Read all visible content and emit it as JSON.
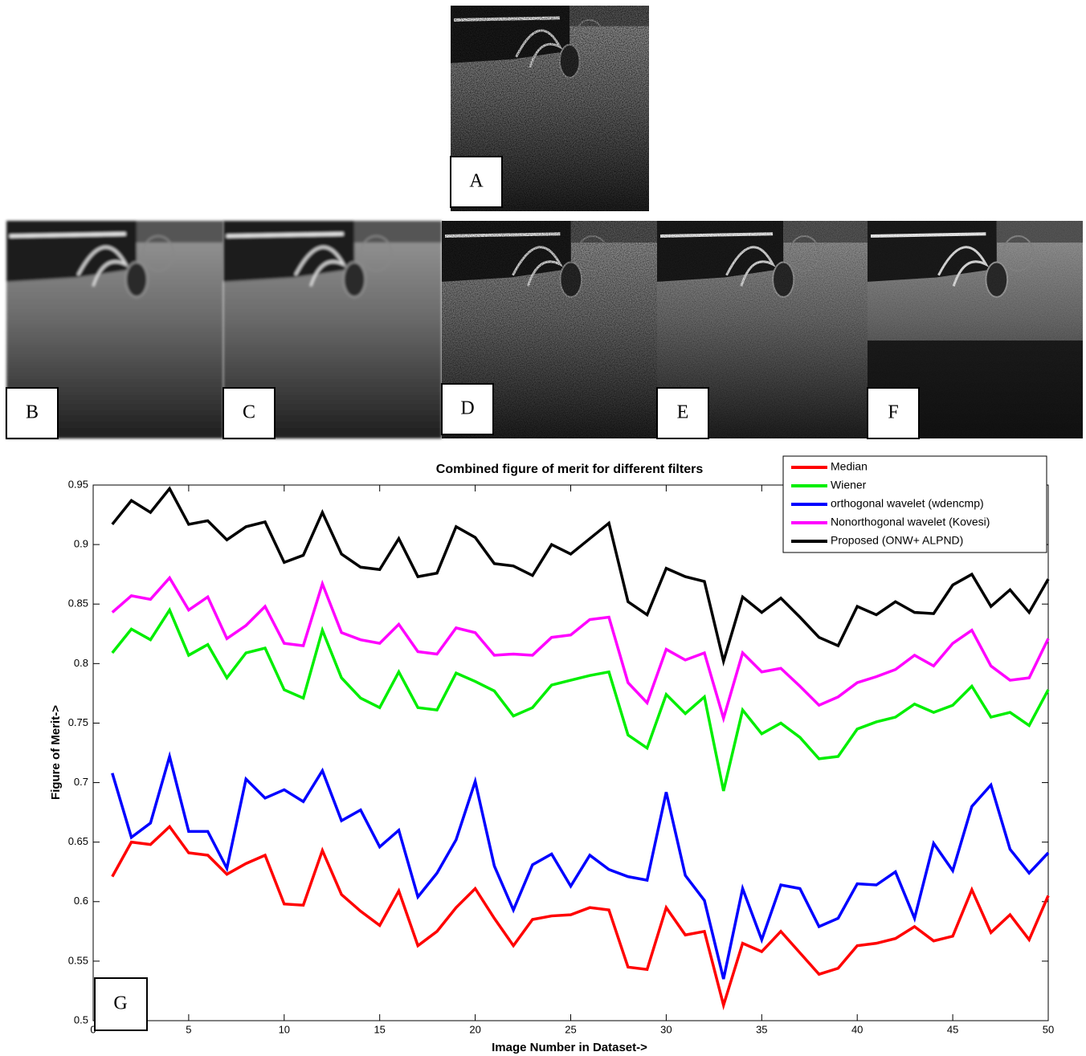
{
  "panels": {
    "labels": [
      "A",
      "B",
      "C",
      "D",
      "E",
      "F"
    ]
  },
  "chart_data": {
    "type": "line",
    "title": "Combined figure of merit for different filters",
    "x_label": "Image Number in Dataset->",
    "y_label": "Figure of Merit->",
    "annotation": "G",
    "x": [
      1,
      2,
      3,
      4,
      5,
      6,
      7,
      8,
      9,
      10,
      11,
      12,
      13,
      14,
      15,
      16,
      17,
      18,
      19,
      20,
      21,
      22,
      23,
      24,
      25,
      26,
      27,
      28,
      29,
      30,
      31,
      32,
      33,
      34,
      35,
      36,
      37,
      38,
      39,
      40,
      41,
      42,
      43,
      44,
      45,
      46,
      47,
      48,
      49,
      50
    ],
    "xlim": [
      0,
      50
    ],
    "xticks": [
      0,
      5,
      10,
      15,
      20,
      25,
      30,
      35,
      40,
      45,
      50
    ],
    "ylim": [
      0.5,
      0.95
    ],
    "yticks": [
      0.5,
      0.55,
      0.6,
      0.65,
      0.7,
      0.75,
      0.8,
      0.85,
      0.9,
      0.95
    ],
    "legend": "top-right",
    "series": [
      {
        "name": "Median",
        "color": "#ff0000",
        "values": [
          0.621,
          0.65,
          0.648,
          0.663,
          0.641,
          0.639,
          0.623,
          0.632,
          0.639,
          0.598,
          0.597,
          0.643,
          0.606,
          0.592,
          0.58,
          0.609,
          0.563,
          0.575,
          0.595,
          0.611,
          0.586,
          0.563,
          0.585,
          0.588,
          0.589,
          0.595,
          0.593,
          0.545,
          0.543,
          0.595,
          0.572,
          0.575,
          0.513,
          0.565,
          0.558,
          0.575,
          0.557,
          0.539,
          0.544,
          0.563,
          0.565,
          0.569,
          0.579,
          0.567,
          0.571,
          0.61,
          0.574,
          0.589,
          0.568,
          0.605
        ]
      },
      {
        "name": "Wiener",
        "color": "#00ee00",
        "values": [
          0.809,
          0.829,
          0.82,
          0.845,
          0.807,
          0.816,
          0.788,
          0.809,
          0.813,
          0.778,
          0.771,
          0.828,
          0.788,
          0.771,
          0.763,
          0.793,
          0.763,
          0.761,
          0.792,
          0.785,
          0.777,
          0.756,
          0.763,
          0.782,
          0.786,
          0.79,
          0.793,
          0.74,
          0.729,
          0.774,
          0.758,
          0.772,
          0.693,
          0.761,
          0.741,
          0.75,
          0.738,
          0.72,
          0.722,
          0.745,
          0.751,
          0.755,
          0.766,
          0.759,
          0.765,
          0.781,
          0.755,
          0.759,
          0.748,
          0.778
        ]
      },
      {
        "name": "orthogonal wavelet (wdencmp)",
        "color": "#0000ff",
        "values": [
          0.708,
          0.654,
          0.666,
          0.722,
          0.659,
          0.659,
          0.628,
          0.703,
          0.687,
          0.694,
          0.684,
          0.71,
          0.668,
          0.677,
          0.646,
          0.66,
          0.604,
          0.624,
          0.652,
          0.701,
          0.63,
          0.593,
          0.631,
          0.64,
          0.613,
          0.639,
          0.627,
          0.621,
          0.618,
          0.692,
          0.622,
          0.601,
          0.535,
          0.611,
          0.568,
          0.614,
          0.611,
          0.579,
          0.586,
          0.615,
          0.614,
          0.625,
          0.586,
          0.649,
          0.626,
          0.68,
          0.698,
          0.644,
          0.624,
          0.641
        ]
      },
      {
        "name": "Nonorthogonal wavelet (Kovesi)",
        "color": "#ff00ff",
        "values": [
          0.843,
          0.857,
          0.854,
          0.872,
          0.845,
          0.856,
          0.821,
          0.832,
          0.848,
          0.817,
          0.815,
          0.867,
          0.826,
          0.82,
          0.817,
          0.833,
          0.81,
          0.808,
          0.83,
          0.826,
          0.807,
          0.808,
          0.807,
          0.822,
          0.824,
          0.837,
          0.839,
          0.784,
          0.767,
          0.812,
          0.803,
          0.809,
          0.754,
          0.809,
          0.793,
          0.796,
          0.781,
          0.765,
          0.772,
          0.784,
          0.789,
          0.795,
          0.807,
          0.798,
          0.817,
          0.828,
          0.798,
          0.786,
          0.788,
          0.821
        ]
      },
      {
        "name": "Proposed (ONW+ ALPND)",
        "color": "#000000",
        "values": [
          0.917,
          0.937,
          0.927,
          0.947,
          0.917,
          0.92,
          0.904,
          0.915,
          0.919,
          0.885,
          0.891,
          0.927,
          0.892,
          0.881,
          0.879,
          0.905,
          0.873,
          0.876,
          0.915,
          0.906,
          0.884,
          0.882,
          0.874,
          0.9,
          0.892,
          0.905,
          0.918,
          0.852,
          0.841,
          0.88,
          0.873,
          0.869,
          0.802,
          0.856,
          0.843,
          0.855,
          0.839,
          0.822,
          0.815,
          0.848,
          0.841,
          0.852,
          0.843,
          0.842,
          0.866,
          0.875,
          0.848,
          0.862,
          0.843,
          0.871
        ]
      }
    ]
  }
}
